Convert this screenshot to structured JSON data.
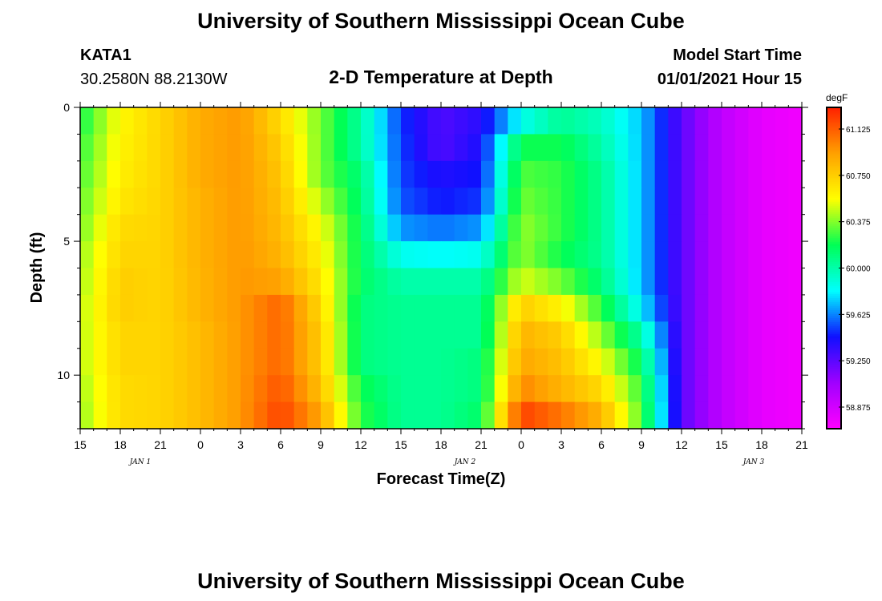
{
  "page": {
    "title_top": "University of Southern Mississippi Ocean Cube",
    "title_bottom": "University of Southern Mississippi Ocean Cube",
    "station_id": "KATA1",
    "station_coords": "30.2580N 88.2130W",
    "plot_title": "2-D Temperature at Depth",
    "model_start_label": "Model Start Time",
    "model_start_value": "01/01/2021 Hour 15"
  },
  "chart_data": {
    "type": "heatmap",
    "title": "2-D Temperature at Depth",
    "xlabel": "Forecast Time(Z)",
    "ylabel": "Depth (ft)",
    "x_tick_labels": [
      "15",
      "18",
      "21",
      "0",
      "3",
      "6",
      "9",
      "12",
      "15",
      "18",
      "21",
      "0",
      "3",
      "6",
      "9",
      "12",
      "15",
      "18",
      "21"
    ],
    "date_labels": [
      "JAN 1",
      "JAN 2",
      "JAN 3"
    ],
    "y_tick_labels": [
      "0",
      "5",
      "10"
    ],
    "ylim": [
      0,
      12
    ],
    "y_inverted": true,
    "unit": "degF",
    "colorbar_ticks": [
      "61.125",
      "60.750",
      "60.375",
      "60.000",
      "59.625",
      "59.250",
      "58.875"
    ],
    "colorbar_range": [
      58.7,
      61.3
    ],
    "colorbar_colors": [
      "#ff00ff",
      "#a000ff",
      "#1010ff",
      "#00ffff",
      "#00ff55",
      "#ffff00",
      "#ffa000",
      "#ff2000"
    ],
    "forecast_hours": [
      0,
      3,
      6,
      9,
      12,
      15,
      18,
      21,
      24,
      27,
      30,
      33,
      36,
      39,
      42,
      45,
      48,
      51,
      54
    ],
    "depth_levels": [
      0,
      1,
      2,
      3,
      4,
      5,
      6,
      7,
      8,
      9,
      10,
      11
    ],
    "temperature_degF": [
      [
        60.2,
        60.58,
        60.72,
        60.88,
        60.95,
        60.7,
        60.35,
        60.02,
        59.5,
        59.28,
        59.38,
        59.85,
        60.05,
        59.95,
        59.72,
        59.25,
        58.95,
        58.8,
        58.75
      ],
      [
        60.25,
        60.6,
        60.72,
        60.88,
        60.95,
        60.75,
        60.35,
        60.02,
        59.52,
        59.28,
        59.42,
        60.2,
        60.2,
        60.0,
        59.72,
        59.25,
        58.95,
        58.8,
        58.75
      ],
      [
        60.28,
        60.62,
        60.72,
        60.88,
        60.95,
        60.78,
        60.35,
        60.1,
        59.52,
        59.4,
        59.45,
        60.3,
        60.25,
        60.05,
        59.72,
        59.25,
        58.95,
        58.8,
        58.75
      ],
      [
        60.32,
        60.65,
        60.72,
        60.86,
        60.95,
        60.8,
        60.45,
        60.12,
        59.55,
        59.45,
        59.5,
        60.35,
        60.25,
        60.05,
        59.72,
        59.25,
        58.95,
        58.8,
        58.75
      ],
      [
        60.35,
        60.7,
        60.72,
        60.86,
        60.95,
        60.82,
        60.55,
        60.15,
        59.65,
        59.6,
        59.65,
        60.4,
        60.25,
        60.05,
        59.72,
        59.25,
        58.95,
        58.8,
        58.75
      ],
      [
        60.4,
        60.72,
        60.72,
        60.86,
        60.95,
        60.85,
        60.6,
        60.15,
        59.85,
        59.82,
        59.85,
        60.4,
        60.2,
        60.05,
        59.72,
        59.25,
        58.95,
        58.8,
        58.75
      ],
      [
        60.42,
        60.75,
        60.72,
        60.85,
        60.95,
        60.92,
        60.65,
        60.15,
        60.0,
        60.0,
        60.0,
        60.5,
        60.35,
        60.1,
        59.72,
        59.25,
        58.95,
        58.8,
        58.75
      ],
      [
        60.45,
        60.75,
        60.72,
        60.85,
        60.95,
        61.1,
        60.7,
        60.1,
        60.05,
        60.05,
        60.05,
        60.75,
        60.6,
        60.25,
        59.8,
        59.25,
        58.95,
        58.8,
        58.75
      ],
      [
        60.45,
        60.72,
        60.72,
        60.82,
        60.95,
        61.1,
        60.75,
        60.1,
        60.05,
        60.05,
        60.05,
        60.85,
        60.75,
        60.4,
        60.0,
        59.25,
        58.95,
        58.8,
        58.75
      ],
      [
        60.45,
        60.72,
        60.72,
        60.82,
        60.95,
        61.1,
        60.75,
        60.1,
        60.05,
        60.05,
        60.1,
        60.9,
        60.8,
        60.55,
        60.15,
        59.25,
        58.95,
        58.8,
        58.75
      ],
      [
        60.42,
        60.7,
        60.72,
        60.82,
        60.95,
        61.15,
        60.8,
        60.2,
        60.05,
        60.05,
        60.1,
        61.0,
        60.85,
        60.7,
        60.25,
        59.25,
        58.95,
        58.8,
        58.75
      ],
      [
        60.4,
        60.7,
        60.72,
        60.82,
        60.95,
        61.2,
        60.9,
        60.25,
        60.05,
        60.05,
        60.15,
        61.2,
        61.05,
        60.85,
        60.3,
        59.25,
        58.95,
        58.8,
        58.75
      ]
    ],
    "grid": false
  }
}
